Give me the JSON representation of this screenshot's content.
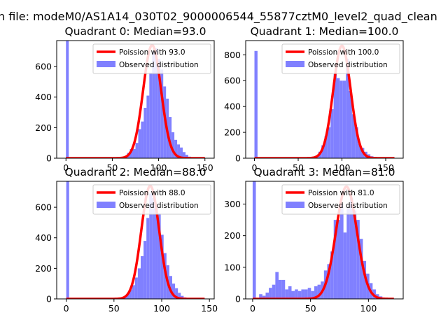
{
  "figure": {
    "suptitle": "n file: modeM0/AS1A14_030T02_9000006544_55877cztM0_level2_quad_clean"
  },
  "chart_data": [
    {
      "type": "bar",
      "title": "Quadrant 0: Median=93.0",
      "xlim": [
        -10,
        160
      ],
      "ylim": [
        0,
        770
      ],
      "xticks": [
        0,
        50,
        100,
        150
      ],
      "yticks": [
        0,
        200,
        400,
        600
      ],
      "fit_label": "Poission with 93.0",
      "hist_label": "Observed distribution",
      "mean": 93,
      "amplitude": 740,
      "curve_xmax": 150,
      "bin_width": 3,
      "bins": [
        {
          "x": 0,
          "y": 780
        },
        {
          "x": 60,
          "y": 8
        },
        {
          "x": 63,
          "y": 15
        },
        {
          "x": 66,
          "y": 35
        },
        {
          "x": 69,
          "y": 60
        },
        {
          "x": 72,
          "y": 60
        },
        {
          "x": 75,
          "y": 100
        },
        {
          "x": 78,
          "y": 190
        },
        {
          "x": 81,
          "y": 240
        },
        {
          "x": 84,
          "y": 330
        },
        {
          "x": 87,
          "y": 410
        },
        {
          "x": 90,
          "y": 560
        },
        {
          "x": 93,
          "y": 700
        },
        {
          "x": 96,
          "y": 720
        },
        {
          "x": 99,
          "y": 650
        },
        {
          "x": 102,
          "y": 580
        },
        {
          "x": 105,
          "y": 470
        },
        {
          "x": 108,
          "y": 390
        },
        {
          "x": 111,
          "y": 270
        },
        {
          "x": 114,
          "y": 170
        },
        {
          "x": 117,
          "y": 120
        },
        {
          "x": 120,
          "y": 90
        },
        {
          "x": 123,
          "y": 70
        },
        {
          "x": 126,
          "y": 40
        },
        {
          "x": 129,
          "y": 22
        },
        {
          "x": 132,
          "y": 10
        }
      ]
    },
    {
      "type": "bar",
      "title": "Quadrant 1: Median=100.0",
      "xlim": [
        -10,
        170
      ],
      "ylim": [
        0,
        910
      ],
      "xticks": [
        0,
        50,
        100,
        150
      ],
      "yticks": [
        0,
        200,
        400,
        600,
        800
      ],
      "fit_label": "Poission with 100.0",
      "hist_label": "Observed distribution",
      "mean": 100,
      "amplitude": 870,
      "curve_xmax": 160,
      "bin_width": 3.5,
      "bins": [
        {
          "x": 0,
          "y": 830
        },
        {
          "x": 66,
          "y": 10
        },
        {
          "x": 69.5,
          "y": 20
        },
        {
          "x": 73,
          "y": 50
        },
        {
          "x": 76.5,
          "y": 100
        },
        {
          "x": 80,
          "y": 170
        },
        {
          "x": 83.5,
          "y": 240
        },
        {
          "x": 87,
          "y": 380
        },
        {
          "x": 90.5,
          "y": 650
        },
        {
          "x": 94,
          "y": 620
        },
        {
          "x": 97.5,
          "y": 600
        },
        {
          "x": 101,
          "y": 600
        },
        {
          "x": 104.5,
          "y": 770
        },
        {
          "x": 108,
          "y": 520
        },
        {
          "x": 111.5,
          "y": 340
        },
        {
          "x": 115,
          "y": 240
        },
        {
          "x": 118.5,
          "y": 110
        },
        {
          "x": 122,
          "y": 80
        },
        {
          "x": 125.5,
          "y": 50
        },
        {
          "x": 129,
          "y": 30
        },
        {
          "x": 132.5,
          "y": 15
        }
      ]
    },
    {
      "type": "bar",
      "title": "Quadrant 2: Median=88.0",
      "xlim": [
        -10,
        155
      ],
      "ylim": [
        0,
        770
      ],
      "xticks": [
        0,
        50,
        100,
        150
      ],
      "yticks": [
        0,
        200,
        400,
        600
      ],
      "fit_label": "Poission with 88.0",
      "hist_label": "Observed distribution",
      "mean": 88,
      "amplitude": 740,
      "curve_xmax": 145,
      "bin_width": 3,
      "bins": [
        {
          "x": 0,
          "y": 780
        },
        {
          "x": 57,
          "y": 8
        },
        {
          "x": 60,
          "y": 15
        },
        {
          "x": 63,
          "y": 30
        },
        {
          "x": 66,
          "y": 60
        },
        {
          "x": 69,
          "y": 90
        },
        {
          "x": 72,
          "y": 140
        },
        {
          "x": 75,
          "y": 200
        },
        {
          "x": 78,
          "y": 280
        },
        {
          "x": 81,
          "y": 380
        },
        {
          "x": 84,
          "y": 530
        },
        {
          "x": 87,
          "y": 690
        },
        {
          "x": 90,
          "y": 660
        },
        {
          "x": 93,
          "y": 600
        },
        {
          "x": 96,
          "y": 560
        },
        {
          "x": 99,
          "y": 420
        },
        {
          "x": 102,
          "y": 300
        },
        {
          "x": 105,
          "y": 220
        },
        {
          "x": 108,
          "y": 150
        },
        {
          "x": 111,
          "y": 100
        },
        {
          "x": 114,
          "y": 70
        },
        {
          "x": 117,
          "y": 40
        },
        {
          "x": 120,
          "y": 20
        },
        {
          "x": 123,
          "y": 10
        }
      ]
    },
    {
      "type": "bar",
      "title": "Quadrant 3: Median=81.0",
      "xlim": [
        -6,
        130
      ],
      "ylim": [
        0,
        372
      ],
      "xticks": [
        0,
        50,
        100
      ],
      "yticks": [
        0,
        100,
        200,
        300
      ],
      "fit_label": "Poission with 81.0",
      "hist_label": "Observed distribution",
      "mean": 81,
      "amplitude": 355,
      "curve_xmax": 122,
      "bin_width": 2.8,
      "bins": [
        {
          "x": 0,
          "y": 380
        },
        {
          "x": 5.6,
          "y": 15
        },
        {
          "x": 8.4,
          "y": 10
        },
        {
          "x": 11.2,
          "y": 20
        },
        {
          "x": 14,
          "y": 35
        },
        {
          "x": 16.8,
          "y": 45
        },
        {
          "x": 19.6,
          "y": 85
        },
        {
          "x": 22.4,
          "y": 60
        },
        {
          "x": 25.2,
          "y": 60
        },
        {
          "x": 28,
          "y": 30
        },
        {
          "x": 30.8,
          "y": 40
        },
        {
          "x": 33.6,
          "y": 25
        },
        {
          "x": 36.4,
          "y": 30
        },
        {
          "x": 39.2,
          "y": 25
        },
        {
          "x": 42,
          "y": 30
        },
        {
          "x": 44.8,
          "y": 30
        },
        {
          "x": 47.6,
          "y": 35
        },
        {
          "x": 50.4,
          "y": 25
        },
        {
          "x": 53.2,
          "y": 40
        },
        {
          "x": 56,
          "y": 45
        },
        {
          "x": 58.8,
          "y": 55
        },
        {
          "x": 61.6,
          "y": 90
        },
        {
          "x": 64.4,
          "y": 110
        },
        {
          "x": 67.2,
          "y": 150
        },
        {
          "x": 70,
          "y": 250
        },
        {
          "x": 72.8,
          "y": 250
        },
        {
          "x": 75.6,
          "y": 300
        },
        {
          "x": 78.4,
          "y": 210
        },
        {
          "x": 81.2,
          "y": 290
        },
        {
          "x": 84,
          "y": 320
        },
        {
          "x": 86.8,
          "y": 280
        },
        {
          "x": 89.6,
          "y": 250
        },
        {
          "x": 92.4,
          "y": 190
        },
        {
          "x": 95.2,
          "y": 120
        },
        {
          "x": 98,
          "y": 80
        },
        {
          "x": 100.8,
          "y": 50
        },
        {
          "x": 103.6,
          "y": 30
        },
        {
          "x": 106.4,
          "y": 15
        },
        {
          "x": 109.2,
          "y": 8
        }
      ]
    }
  ]
}
